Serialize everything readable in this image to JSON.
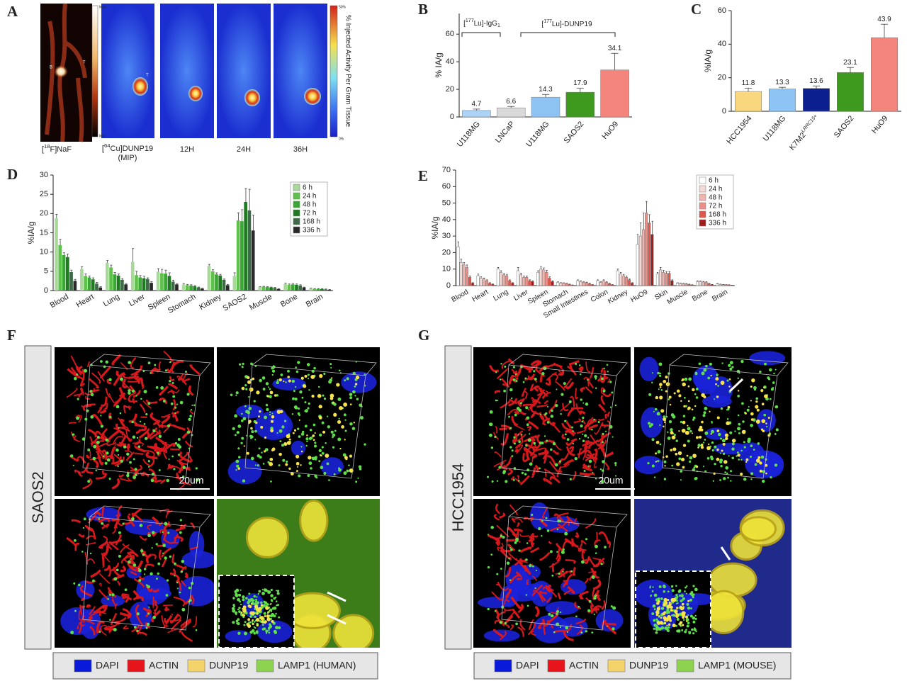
{
  "figure": {
    "panel_letters": [
      "A",
      "B",
      "C",
      "D",
      "E",
      "F",
      "G"
    ]
  },
  "panel_a": {
    "labels": [
      {
        "parts": [
          "[",
          "18",
          "F]NaF"
        ]
      },
      {
        "parts": [
          "[",
          "64",
          "Cu]DUNP19"
        ]
      },
      {
        "parts": [
          "(MIP)"
        ]
      },
      {
        "parts": [
          "12H"
        ]
      },
      {
        "parts": [
          "24H"
        ]
      },
      {
        "parts": [
          "36H"
        ]
      }
    ],
    "markers": [
      "B",
      "T",
      "T"
    ],
    "scale1": [
      "Max",
      "Min"
    ],
    "scale2": [
      "50%",
      "0%"
    ],
    "colorbar_title": "% Injected Activity Per Gram Tissue"
  },
  "chart_data": [
    {
      "type": "bar",
      "y_label": "% IA/g",
      "categories": [
        "U118MG",
        "LNCaP",
        "U118MG",
        "SAOS2",
        "HuO9"
      ],
      "values": [
        4.7,
        6.6,
        14.3,
        17.9,
        34.1
      ],
      "errors": [
        1.0,
        1.0,
        2.0,
        3.0,
        12.0
      ],
      "colors": [
        "#acd3f7",
        "#d9d9d9",
        "#8ec4f4",
        "#3d9a1f",
        "#f3857d"
      ],
      "data_labels": true,
      "annotations": [
        {
          "parts": [
            "[",
            "177",
            "Lu]-IgG",
            "1"
          ]
        },
        {
          "parts": [
            "[",
            "177",
            "Lu]-DUNP19"
          ]
        }
      ],
      "ylim": [
        0,
        75
      ],
      "yticks": [
        0,
        20,
        40,
        60
      ]
    },
    {
      "type": "bar",
      "y_label": "%IA/g",
      "categories": [
        "HCC1954",
        "U118MG",
        "K7M2",
        "SAOS2",
        "HuO9"
      ],
      "category_superscripts": [
        null,
        null,
        "LRRC15+",
        null,
        null
      ],
      "values": [
        11.8,
        13.3,
        13.6,
        23.1,
        43.9
      ],
      "errors": [
        2.0,
        1.0,
        1.5,
        3.0,
        8.0
      ],
      "colors": [
        "#f8d77e",
        "#8ec4f4",
        "#0b1f8f",
        "#3d9a1f",
        "#f3857d"
      ],
      "data_labels": true,
      "ylim": [
        0,
        60
      ],
      "yticks": [
        0,
        20,
        40,
        60
      ]
    },
    {
      "type": "bar",
      "y_label": "%IA/g",
      "categories": [
        "Blood",
        "Heart",
        "Lung",
        "Liver",
        "Spleen",
        "Stomach",
        "Kidney",
        "SAOS2",
        "Muscle",
        "Bone",
        "Brain"
      ],
      "series": [
        {
          "name": "6 h",
          "color": "#a9d89b",
          "values": [
            18.8,
            5.6,
            7.2,
            7.4,
            4.9,
            1.6,
            6.4,
            3.8,
            0.9,
            1.7,
            0.5
          ],
          "errors": [
            1.0,
            0.6,
            0.6,
            3.5,
            0.8,
            0.2,
            0.4,
            0.8,
            0.1,
            0.2,
            0.1
          ]
        },
        {
          "name": "24 h",
          "color": "#5ec24a",
          "values": [
            11.8,
            3.8,
            6.0,
            4.0,
            4.5,
            1.4,
            5.0,
            18.2,
            1.0,
            1.5,
            0.4
          ],
          "errors": [
            1.5,
            0.5,
            0.6,
            1.0,
            1.0,
            0.2,
            0.4,
            2.0,
            0.1,
            0.2,
            0.1
          ]
        },
        {
          "name": "48 h",
          "color": "#38a832",
          "values": [
            9.2,
            3.4,
            4.2,
            3.4,
            4.4,
            1.3,
            4.2,
            18.0,
            0.9,
            1.6,
            0.4
          ],
          "errors": [
            0.6,
            0.4,
            0.5,
            0.5,
            0.9,
            0.2,
            0.4,
            3.0,
            0.1,
            0.2,
            0.1
          ]
        },
        {
          "name": "72 h",
          "color": "#1f7a22",
          "values": [
            8.7,
            2.9,
            3.9,
            3.2,
            3.8,
            1.1,
            3.9,
            23.0,
            0.8,
            1.5,
            0.4
          ],
          "errors": [
            0.8,
            0.4,
            0.4,
            0.5,
            0.8,
            0.2,
            0.3,
            3.5,
            0.1,
            0.2,
            0.1
          ]
        },
        {
          "name": "168 h",
          "color": "#3e6a47",
          "values": [
            4.8,
            1.8,
            2.8,
            3.0,
            2.3,
            0.8,
            2.8,
            20.8,
            0.7,
            1.3,
            0.3
          ],
          "errors": [
            0.5,
            0.3,
            0.3,
            0.3,
            0.4,
            0.1,
            0.2,
            5.5,
            0.1,
            0.2,
            0.1
          ]
        },
        {
          "name": "336 h",
          "color": "#2a2a2a",
          "values": [
            2.5,
            0.8,
            1.6,
            2.0,
            1.6,
            0.5,
            1.4,
            15.6,
            0.4,
            0.8,
            0.2
          ],
          "errors": [
            0.4,
            0.2,
            0.2,
            0.3,
            0.2,
            0.1,
            0.2,
            4.0,
            0.1,
            0.1,
            0.1
          ]
        }
      ],
      "ylim": [
        0,
        30
      ],
      "yticks": [
        0,
        5,
        10,
        15,
        20,
        25,
        30
      ]
    },
    {
      "type": "bar",
      "y_label": "%IA/g",
      "categories": [
        "Blood",
        "Heart",
        "Lung",
        "Liver",
        "Spleen",
        "Stomach",
        "Small Intestines",
        "Colon",
        "Kidney",
        "HuO9",
        "Skin",
        "Muscle",
        "Bone",
        "Brain"
      ],
      "series": [
        {
          "name": "6 h",
          "color": "#ffffff",
          "values": [
            23.5,
            6,
            10,
            9,
            8,
            2,
            3,
            3,
            9,
            25,
            7,
            1.5,
            2.5,
            1
          ],
          "errors": [
            3,
            1,
            1,
            2,
            1,
            0.3,
            0.5,
            0.5,
            1,
            6,
            1,
            0.2,
            0.4,
            0.2
          ]
        },
        {
          "name": "24 h",
          "color": "#f7d9d6",
          "values": [
            14,
            4.5,
            8,
            6.5,
            10,
            1.5,
            2.5,
            2,
            7,
            30,
            9.5,
            1.3,
            2.5,
            0.8
          ],
          "errors": [
            2,
            0.8,
            1,
            1,
            1.5,
            0.3,
            0.4,
            0.3,
            1,
            8,
            1.5,
            0.2,
            0.3,
            0.1
          ]
        },
        {
          "name": "48 h",
          "color": "#f2b4ae",
          "values": [
            12.5,
            4,
            6.5,
            5,
            9.5,
            1.5,
            2,
            3,
            6,
            34,
            8,
            1.2,
            2.2,
            0.6
          ],
          "errors": [
            1.5,
            0.6,
            0.8,
            0.8,
            1.2,
            0.2,
            0.3,
            0.5,
            0.8,
            10,
            1.2,
            0.2,
            0.3,
            0.1
          ]
        },
        {
          "name": "72 h",
          "color": "#ec8f87",
          "values": [
            11,
            3,
            6,
            5,
            8,
            1.2,
            1.8,
            2,
            5,
            44,
            7.5,
            1,
            2,
            0.5
          ],
          "errors": [
            1.5,
            0.5,
            0.8,
            0.8,
            1.2,
            0.2,
            0.3,
            0.3,
            0.7,
            7,
            1,
            0.2,
            0.3,
            0.1
          ]
        },
        {
          "name": "168 h",
          "color": "#e2574c",
          "values": [
            5,
            1.5,
            3,
            3,
            4.5,
            0.8,
            1.2,
            1.2,
            3.5,
            38,
            7.5,
            0.8,
            1.2,
            0.4
          ],
          "errors": [
            0.8,
            0.3,
            0.5,
            0.5,
            0.8,
            0.1,
            0.2,
            0.2,
            0.5,
            5,
            1,
            0.1,
            0.2,
            0.1
          ]
        },
        {
          "name": "336 h",
          "color": "#a31d1d",
          "values": [
            1.5,
            0.8,
            1.5,
            2.5,
            2.5,
            0.3,
            0.5,
            0.5,
            1.5,
            31,
            3,
            0.4,
            0.6,
            0.2
          ],
          "errors": [
            0.3,
            0.2,
            0.3,
            0.4,
            0.4,
            0.1,
            0.1,
            0.1,
            0.3,
            8,
            0.5,
            0.1,
            0.1,
            0.05
          ]
        }
      ],
      "ylim": [
        0,
        70
      ],
      "yticks": [
        0,
        10,
        20,
        30,
        40,
        50,
        60,
        70
      ]
    }
  ],
  "panel_f": {
    "side_label": "SAOS2",
    "scale_bar": "20um",
    "legend": [
      "DAPI",
      "ACTIN",
      "DUNP19",
      "LAMP1 (HUMAN)"
    ]
  },
  "panel_g": {
    "side_label": "HCC1954",
    "scale_bar": "20um",
    "legend": [
      "DAPI",
      "ACTIN",
      "DUNP19",
      "LAMP1 (MOUSE)"
    ]
  }
}
